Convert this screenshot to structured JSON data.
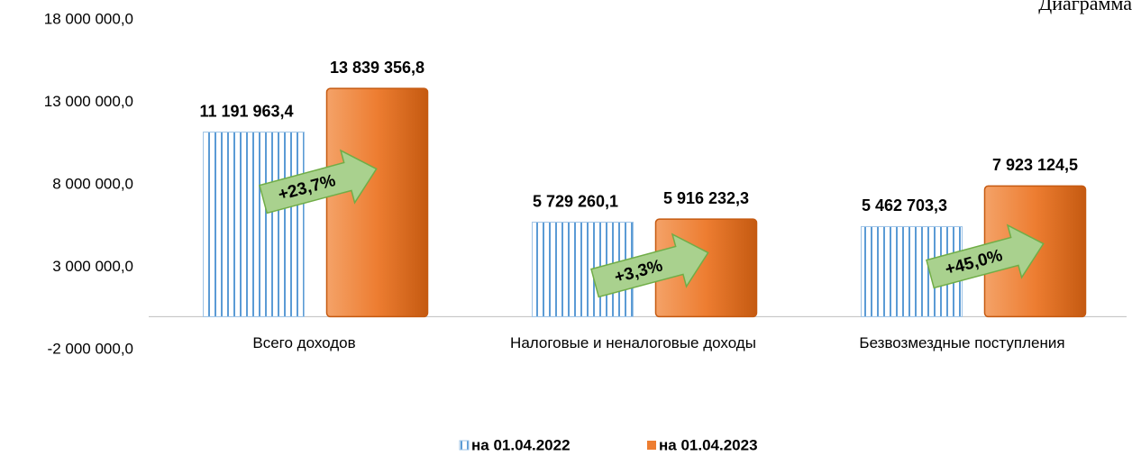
{
  "chart_data": {
    "type": "bar",
    "title": "Диаграмма",
    "categories": [
      "Всего доходов",
      "Налоговые и неналоговые доходы",
      "Безвозмездные поступления"
    ],
    "series": [
      {
        "name": "на 01.04.2022",
        "color": "#5b9bd5",
        "values": [
          11191963.4,
          5729260.1,
          5462703.3
        ],
        "value_labels": [
          "11 191 963,4",
          "5 729 260,1",
          "5 462 703,3"
        ]
      },
      {
        "name": "на 01.04.2023",
        "color": "#ed7d31",
        "values": [
          13839356.8,
          5916232.3,
          7923124.5
        ],
        "value_labels": [
          "13 839 356,8",
          "5 916 232,3",
          "7 923 124,5"
        ]
      }
    ],
    "annotations": [
      "+23,7%",
      "+3,3%",
      "+45,0%"
    ],
    "ylim": [
      -2000000,
      18000000
    ],
    "yticks": [
      {
        "value": -2000000,
        "label": "-2 000 000,0"
      },
      {
        "value": 3000000,
        "label": "3 000 000,0"
      },
      {
        "value": 8000000,
        "label": "8 000 000,0"
      },
      {
        "value": 13000000,
        "label": "13 000 000,0"
      },
      {
        "value": 18000000,
        "label": "18 000 000,0"
      }
    ],
    "legend": "bottom"
  }
}
